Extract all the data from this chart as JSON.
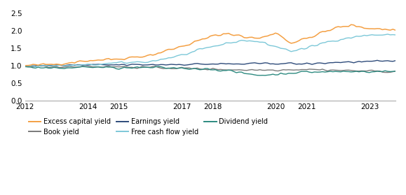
{
  "title": "",
  "xlabel": "",
  "ylabel": "",
  "xlim": [
    2012.0,
    2023.83
  ],
  "ylim": [
    0.0,
    2.5
  ],
  "yticks": [
    0.0,
    0.5,
    1.0,
    1.5,
    2.0,
    2.5
  ],
  "xtick_labels": [
    "2012",
    "2014",
    "2015",
    "2017",
    "2018",
    "2020",
    "2021",
    "2023"
  ],
  "xtick_positions": [
    2012,
    2014,
    2015,
    2017,
    2018,
    2020,
    2021,
    2023
  ],
  "series": {
    "Excess capital yield": {
      "color": "#F4A044",
      "lw": 1.1
    },
    "Book yield": {
      "color": "#7A7A7A",
      "lw": 1.0
    },
    "Earnings yield": {
      "color": "#2E4B7A",
      "lw": 1.0
    },
    "Free cash flow yield": {
      "color": "#7DC8D8",
      "lw": 1.0
    },
    "Dividend yield": {
      "color": "#2D8A80",
      "lw": 1.0
    }
  },
  "legend_order": [
    "Excess capital yield",
    "Book yield",
    "Earnings yield",
    "Free cash flow yield",
    "Dividend yield"
  ],
  "background_color": "#FFFFFF",
  "seed": 42
}
